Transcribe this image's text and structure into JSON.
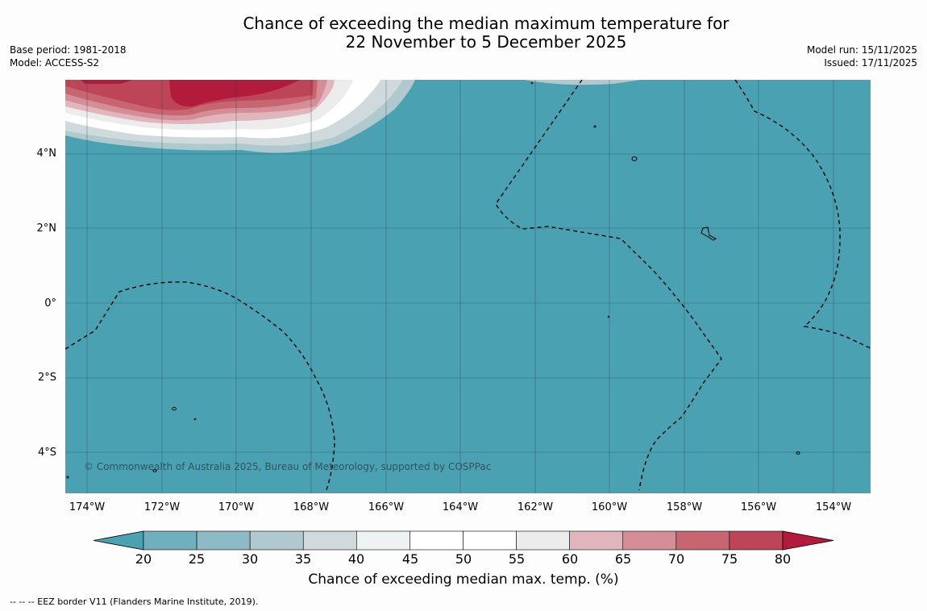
{
  "title": {
    "line1": "Chance of exceeding the median maximum temperature for",
    "line2": "22 November to 5 December 2025"
  },
  "meta_left": {
    "base_period": "Base period: 1981-2018",
    "model": "Model: ACCESS-S2"
  },
  "meta_right": {
    "model_run": "Model run: 15/11/2025",
    "issued": "Issued: 17/11/2025"
  },
  "map": {
    "lat_labels": [
      "4°N",
      "2°N",
      "0°",
      "2°S",
      "4°S"
    ],
    "lon_labels": [
      "174°W",
      "172°W",
      "170°W",
      "168°W",
      "166°W",
      "164°W",
      "162°W",
      "160°W",
      "158°W",
      "156°W",
      "154°W"
    ],
    "copyright": "© Commonwealth of Australia 2025, Bureau of Meteorology, supported by COSPPac"
  },
  "colorbar": {
    "ticks": [
      "20",
      "25",
      "30",
      "35",
      "40",
      "45",
      "50",
      "55",
      "60",
      "65",
      "70",
      "75",
      "80"
    ],
    "colors": [
      "#4aa1b2",
      "#6fafbe",
      "#8cbbc6",
      "#afc9cf",
      "#d0dadd",
      "#eef2f3",
      "#ffffff",
      "#ffffff",
      "#ececec",
      "#e0b6bc",
      "#d58e97",
      "#c76570",
      "#be4557",
      "#b21b3b"
    ],
    "title": "Chance of exceeding median max. temp. (%)"
  },
  "footer": "--  --  -- EEZ border V11 (Flanders Marine Institute, 2019)."
}
